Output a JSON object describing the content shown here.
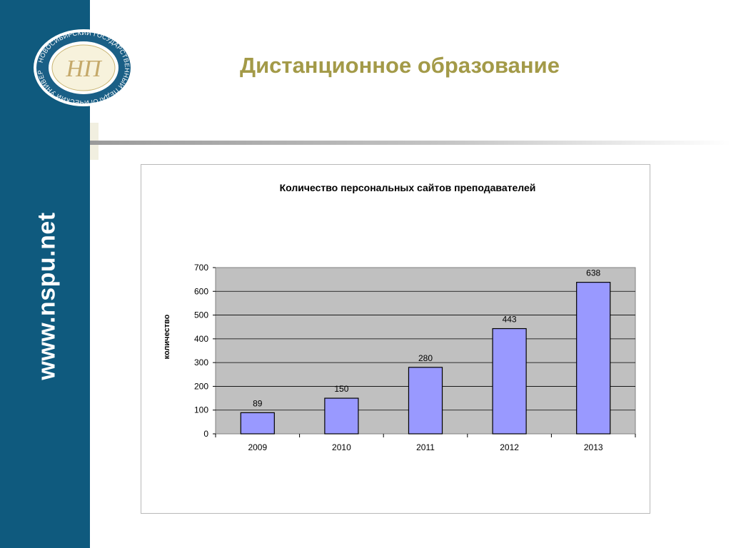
{
  "slide": {
    "title": "Дистанционное образование",
    "side_url": "www.nspu.net"
  },
  "logo": {
    "ring_text": "НОВОСИБИРСКИЙ ГОСУДАРСТВЕННЫЙ ПЕДАГОГИЧЕСКИЙ УНИВЕРСИТЕТ",
    "monogram": "НП"
  },
  "colors": {
    "sidebar": "#0f5a7e",
    "title": "#a39a48",
    "bar_fill": "#9999ff",
    "plot_bg": "#c0c0c0"
  },
  "chart_data": {
    "type": "bar",
    "title": "Количество персональных сайтов преподавателей",
    "xlabel": "",
    "ylabel": "количество",
    "categories": [
      "2009",
      "2010",
      "2011",
      "2012",
      "2013"
    ],
    "values": [
      89,
      150,
      280,
      443,
      638
    ],
    "data_labels": [
      "89",
      "150",
      "280",
      "443",
      "638"
    ],
    "ylim": [
      0,
      700
    ],
    "yticks": [
      0,
      100,
      200,
      300,
      400,
      500,
      600,
      700
    ],
    "ytick_labels": [
      "0",
      "100",
      "200",
      "300",
      "400",
      "500",
      "600",
      "700"
    ],
    "grid": true,
    "legend": "none"
  }
}
